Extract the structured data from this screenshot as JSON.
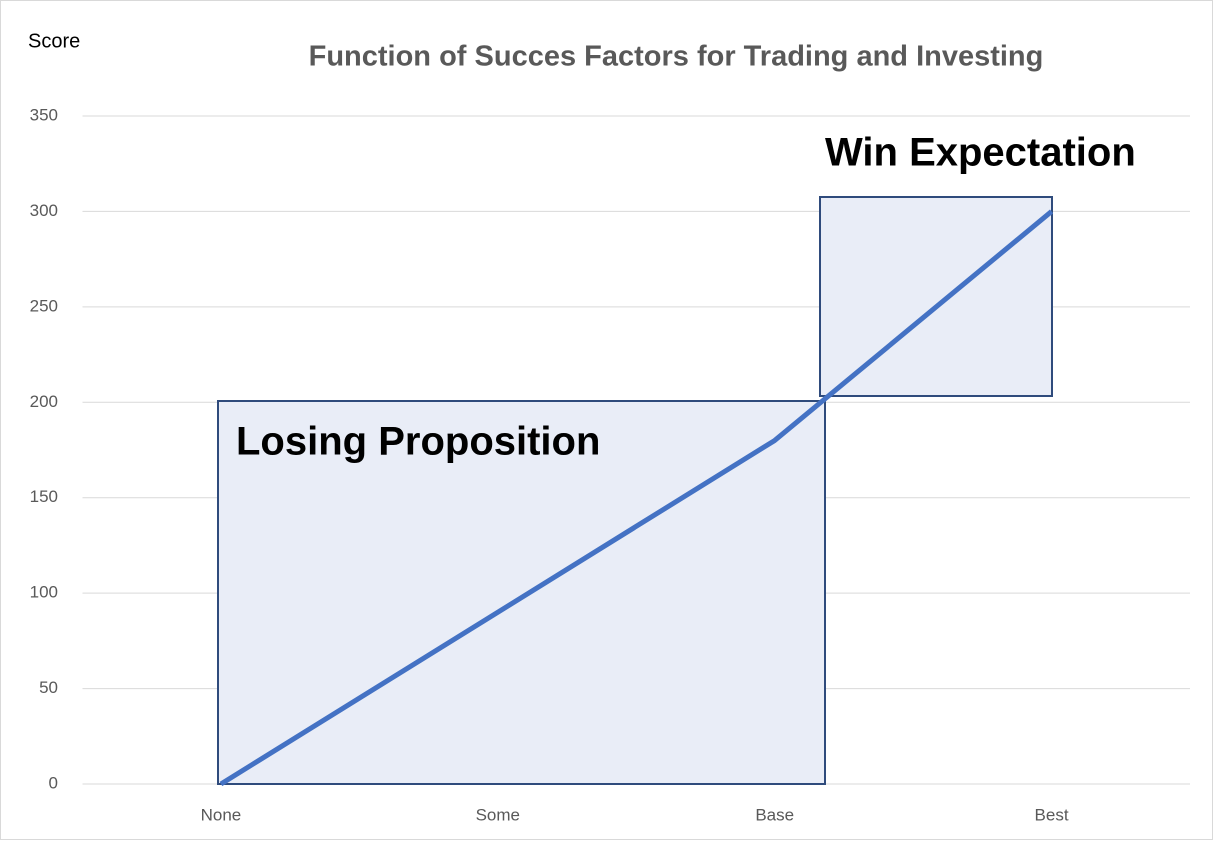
{
  "chart_data": {
    "type": "line",
    "title": "Function of Succes Factors for Trading and Investing",
    "y_label": "Score",
    "categories": [
      "None",
      "Some",
      "Base",
      "Best"
    ],
    "series": [
      {
        "name": "Score",
        "color": "#4472c4",
        "values": [
          0,
          90,
          180,
          300
        ]
      }
    ],
    "ylim": [
      0,
      350
    ],
    "yticks": [
      0,
      50,
      100,
      150,
      200,
      250,
      300,
      350
    ],
    "grid": true,
    "annotations": [
      "Losing Proposition",
      "Win Expectation"
    ]
  }
}
